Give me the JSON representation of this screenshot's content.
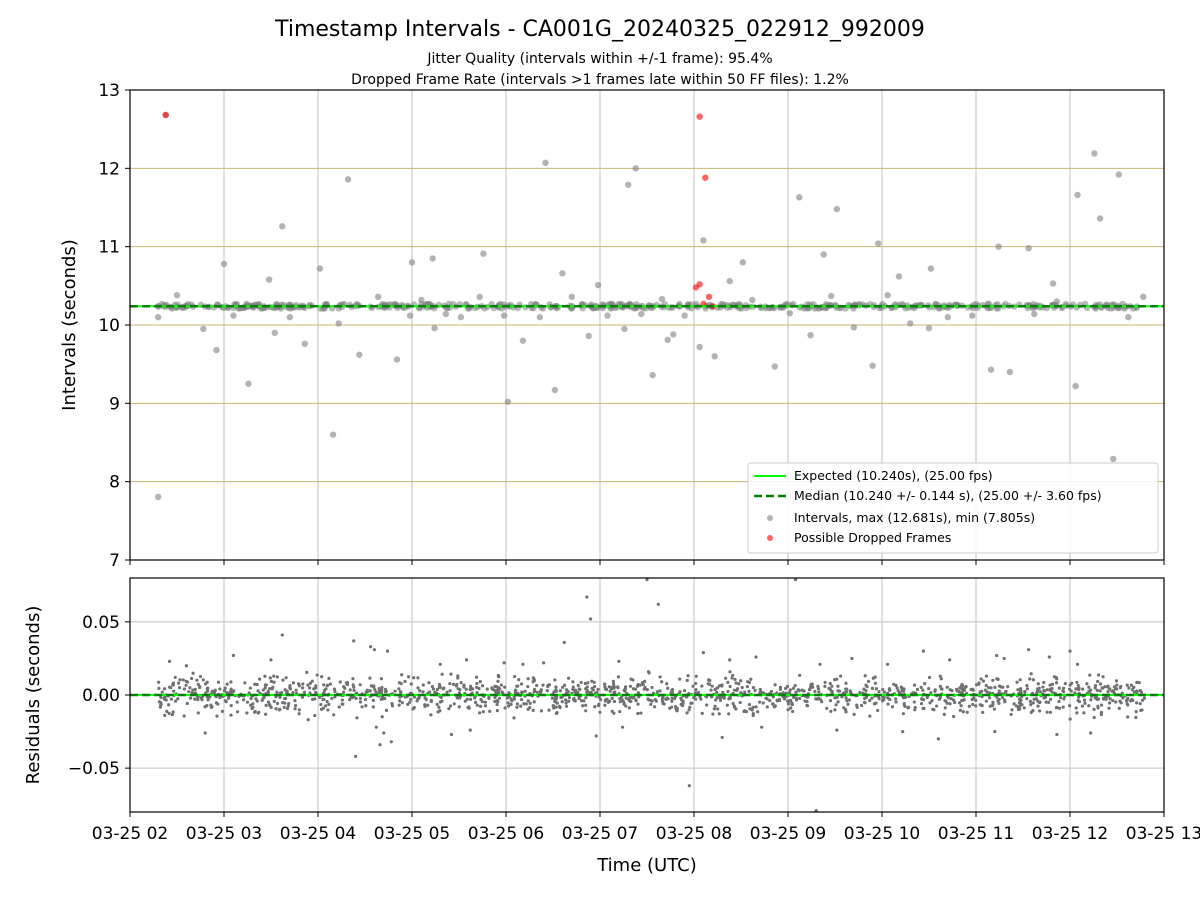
{
  "figure": {
    "title": "Timestamp Intervals - CA001G_20240325_022912_992009",
    "subtitle_line1": "Jitter Quality (intervals within +/-1 frame): 95.4%",
    "subtitle_line2": "Dropped Frame Rate (intervals >1 frames late within 50 FF files): 1.2%"
  },
  "chart_data": [
    {
      "type": "scatter",
      "panel": "intervals",
      "ylabel": "Intervals (seconds)",
      "ylim": [
        7,
        13
      ],
      "yticks": [
        "7",
        "8",
        "9",
        "10",
        "11",
        "12",
        "13"
      ],
      "xlim": [
        2.0,
        13.0
      ],
      "grid": true,
      "legend_position": "lower right",
      "expected_interval": 10.24,
      "median_interval": 10.24,
      "series": [
        {
          "name": "Intervals, max (12.681s), min (7.805s)",
          "color": "#808080",
          "x": [
            2.3,
            2.38,
            3.0,
            3.48,
            3.62,
            4.16,
            4.32,
            5.0,
            5.22,
            5.76,
            6.02,
            6.42,
            6.6,
            6.98,
            7.3,
            7.38,
            7.66,
            7.78,
            8.1,
            8.52,
            9.12,
            9.38,
            9.52,
            9.96,
            10.18,
            10.52,
            11.24,
            11.56,
            11.82,
            12.08,
            12.32,
            12.52,
            2.3,
            2.5,
            2.78,
            2.92,
            3.1,
            3.26,
            3.54,
            3.7,
            3.86,
            4.02,
            4.22,
            4.44,
            4.64,
            4.84,
            4.98,
            5.1,
            5.24,
            5.36,
            5.52,
            5.72,
            5.98,
            6.18,
            6.36,
            6.52,
            6.7,
            6.88,
            7.08,
            7.26,
            7.44,
            7.56,
            7.72,
            7.9,
            8.06,
            8.22,
            8.38,
            8.62,
            8.86,
            9.02,
            9.24,
            9.46,
            9.7,
            9.9,
            10.06,
            10.3,
            10.5,
            10.7,
            10.96,
            11.16,
            11.36,
            11.62,
            11.86,
            12.06,
            12.26,
            12.46,
            12.62,
            12.78
          ],
          "y": [
            7.805,
            12.681,
            10.78,
            10.58,
            11.26,
            8.6,
            11.86,
            10.8,
            10.85,
            10.91,
            9.02,
            12.07,
            10.66,
            10.51,
            11.79,
            12.0,
            10.33,
            9.88,
            11.08,
            10.8,
            11.63,
            10.9,
            11.48,
            11.04,
            10.62,
            10.72,
            11.0,
            10.98,
            10.53,
            11.66,
            11.36,
            11.92,
            10.1,
            10.38,
            9.95,
            9.68,
            10.12,
            9.25,
            9.9,
            10.1,
            9.76,
            10.72,
            10.02,
            9.62,
            10.36,
            9.56,
            10.12,
            10.32,
            9.96,
            10.14,
            10.1,
            10.36,
            10.12,
            9.8,
            10.1,
            9.17,
            10.36,
            9.86,
            10.12,
            9.95,
            10.14,
            9.36,
            9.81,
            10.12,
            9.72,
            9.6,
            10.56,
            10.32,
            9.47,
            10.15,
            9.87,
            10.37,
            9.97,
            9.48,
            10.38,
            10.02,
            9.96,
            10.1,
            10.12,
            9.43,
            9.4,
            10.14,
            10.3,
            9.22,
            12.19,
            8.29,
            10.1,
            10.36
          ]
        },
        {
          "name": "Possible Dropped Frames",
          "color": "#ff0000",
          "x": [
            2.38,
            8.06,
            8.06,
            8.12,
            8.16,
            8.1,
            8.02,
            8.2
          ],
          "y": [
            12.681,
            12.66,
            10.52,
            11.88,
            10.36,
            10.27,
            10.48,
            10.24
          ]
        }
      ],
      "legend": [
        "Expected (10.240s), (25.00 fps)",
        "Median (10.240 +/- 0.144 s), (25.00 +/- 3.60 fps)",
        "Intervals, max (12.681s), min (7.805s)",
        "Possible Dropped Frames"
      ]
    },
    {
      "type": "scatter",
      "panel": "residuals",
      "ylabel": "Residuals (seconds)",
      "xlabel": "Time (UTC)",
      "ylim": [
        -0.08,
        0.08
      ],
      "yticks": [
        "−0.05",
        "0.00",
        "0.05"
      ],
      "xlim": [
        2.0,
        13.0
      ],
      "xticks": [
        "03-25 02",
        "03-25 03",
        "03-25 04",
        "03-25 05",
        "03-25 06",
        "03-25 07",
        "03-25 08",
        "03-25 09",
        "03-25 10",
        "03-25 11",
        "03-25 12",
        "03-25 13"
      ],
      "grid": true,
      "series": [
        {
          "name": "Residuals",
          "color": "#707070",
          "x": [
            2.42,
            2.6,
            2.8,
            3.1,
            3.5,
            3.62,
            4.38,
            4.4,
            4.56,
            4.6,
            4.66,
            4.74,
            4.78,
            4.62,
            4.7,
            5.3,
            5.42,
            5.58,
            5.62,
            5.98,
            6.18,
            6.4,
            6.62,
            6.86,
            6.9,
            6.96,
            7.2,
            7.24,
            7.5,
            7.62,
            7.95,
            8.1,
            8.3,
            8.38,
            8.66,
            8.72,
            9.08,
            9.3,
            9.34,
            9.52,
            9.68,
            10.06,
            10.22,
            10.44,
            10.6,
            10.72,
            11.2,
            11.22,
            11.3,
            11.56,
            11.78,
            11.86,
            12.0,
            12.08,
            12.22
          ],
          "y": [
            0.023,
            0.02,
            -0.026,
            0.027,
            0.024,
            0.041,
            0.037,
            -0.042,
            0.033,
            0.031,
            -0.034,
            0.03,
            -0.032,
            -0.022,
            -0.026,
            0.021,
            -0.027,
            0.024,
            -0.024,
            0.022,
            0.021,
            0.022,
            0.036,
            0.067,
            0.052,
            -0.028,
            0.023,
            -0.022,
            0.079,
            0.062,
            -0.062,
            0.029,
            -0.029,
            0.024,
            0.026,
            -0.022,
            0.079,
            -0.079,
            0.021,
            -0.024,
            0.025,
            0.021,
            -0.025,
            0.03,
            -0.03,
            0.024,
            -0.025,
            0.027,
            0.025,
            0.031,
            0.026,
            -0.027,
            0.03,
            0.021,
            -0.026
          ]
        }
      ]
    }
  ]
}
